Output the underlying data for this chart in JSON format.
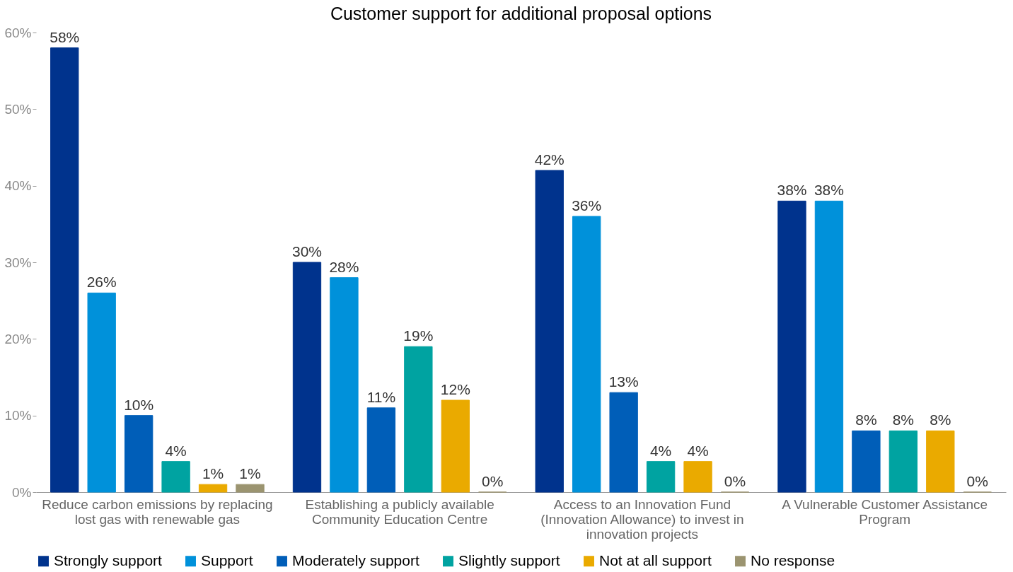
{
  "chart_data": {
    "type": "bar",
    "title": "Customer support for additional proposal options",
    "categories": [
      "Reduce carbon emissions by replacing lost gas with renewable gas",
      "Establishing a publicly available Community Education Centre",
      "Access to an Innovation Fund (Innovation Allowance) to invest in innovation projects",
      "A Vulnerable Customer Assistance Program"
    ],
    "series": [
      {
        "name": "Strongly support",
        "color": "#00338d",
        "values": [
          58,
          30,
          42,
          38
        ],
        "value_labels": [
          "58%",
          "30%",
          "42%",
          "38%"
        ]
      },
      {
        "name": "Support",
        "color": "#0091da",
        "values": [
          26,
          28,
          36,
          38
        ],
        "value_labels": [
          "26%",
          "28%",
          "36%",
          "38%"
        ]
      },
      {
        "name": "Moderately support",
        "color": "#005eb8",
        "values": [
          10,
          11,
          13,
          8
        ],
        "value_labels": [
          "10%",
          "11%",
          "13%",
          "8%"
        ]
      },
      {
        "name": "Slightly support",
        "color": "#00a3a1",
        "values": [
          4,
          19,
          4,
          8
        ],
        "value_labels": [
          "4%",
          "19%",
          "4%",
          "8%"
        ]
      },
      {
        "name": "Not at all support",
        "color": "#eaaa00",
        "values": [
          1,
          12,
          4,
          8
        ],
        "value_labels": [
          "1%",
          "12%",
          "4%",
          "8%"
        ]
      },
      {
        "name": "No response",
        "color": "#9b9470",
        "values": [
          1,
          0,
          0,
          0
        ],
        "value_labels": [
          "1%",
          "0%",
          "0%",
          "0%"
        ]
      }
    ],
    "ylim": [
      0,
      60
    ],
    "yticks": [
      {
        "value": 0,
        "label": "0%"
      },
      {
        "value": 10,
        "label": "10%"
      },
      {
        "value": 20,
        "label": "20%"
      },
      {
        "value": 30,
        "label": "30%"
      },
      {
        "value": 40,
        "label": "40%"
      },
      {
        "value": 50,
        "label": "50%"
      },
      {
        "value": 60,
        "label": "60%"
      }
    ],
    "grid": false,
    "legend": "bottom"
  }
}
